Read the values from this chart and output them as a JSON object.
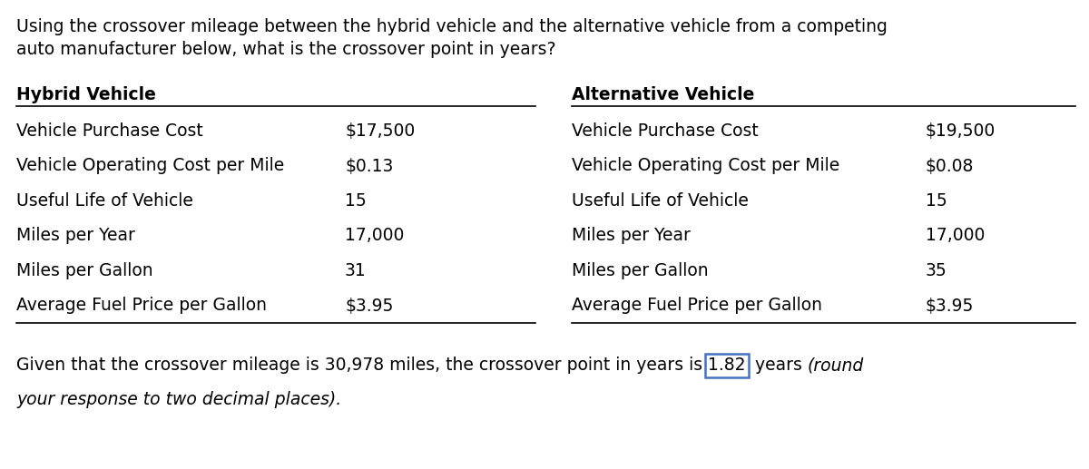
{
  "title_line1": "Using the crossover mileage between the hybrid vehicle and the alternative vehicle from a competing",
  "title_line2": "auto manufacturer below, what is the crossover point in years?",
  "title_fontsize": 13.5,
  "background_color": "#ffffff",
  "hybrid_header": "Hybrid Vehicle",
  "alt_header": "Alternative Vehicle",
  "hybrid_rows": [
    [
      "Vehicle Purchase Cost",
      "$17,500"
    ],
    [
      "Vehicle Operating Cost per Mile",
      "$0.13"
    ],
    [
      "Useful Life of Vehicle",
      "15"
    ],
    [
      "Miles per Year",
      "17,000"
    ],
    [
      "Miles per Gallon",
      "31"
    ],
    [
      "Average Fuel Price per Gallon",
      "$3.95"
    ]
  ],
  "alt_rows": [
    [
      "Vehicle Purchase Cost",
      "$19,500"
    ],
    [
      "Vehicle Operating Cost per Mile",
      "$0.08"
    ],
    [
      "Useful Life of Vehicle",
      "15"
    ],
    [
      "Miles per Year",
      "17,000"
    ],
    [
      "Miles per Gallon",
      "35"
    ],
    [
      "Average Fuel Price per Gallon",
      "$3.95"
    ]
  ],
  "footer_before": "Given that the crossover mileage is 30,978 miles, the crossover point in years is ",
  "footer_boxed": "1.82",
  "footer_after_normal": " years ",
  "footer_after_italic1": "(round",
  "footer_line2_italic": "your response to two decimal places).",
  "footer_fontsize": 13.5,
  "table_fontsize": 13.5,
  "header_fontsize": 13.5,
  "box_edge_color": "#4472c4",
  "text_color": "#000000"
}
